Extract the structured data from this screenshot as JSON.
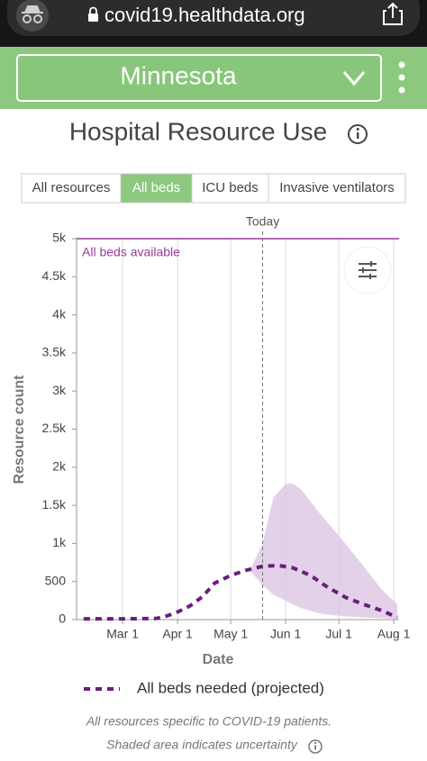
{
  "browser": {
    "url": "covid19.healthdata.org"
  },
  "header": {
    "state": "Minnesota"
  },
  "title": "Hospital Resource Use",
  "tabs": {
    "items": [
      "All resources",
      "All beds",
      "ICU beds",
      "Invasive ventilators"
    ],
    "selected": 1
  },
  "chart_data": {
    "type": "line",
    "x": [
      "Feb 8",
      "Mar 1",
      "Mar 20",
      "Mar 25",
      "Apr 1",
      "Apr 8",
      "Apr 15",
      "Apr 22",
      "May 1",
      "May 10",
      "May 19",
      "May 28",
      "Jun 5",
      "Jun 15",
      "Jun 25",
      "Jul 5",
      "Jul 15",
      "Jul 25",
      "Aug 3"
    ],
    "series": [
      {
        "name": "All beds needed (projected)",
        "color": "#6b1d7b",
        "values": [
          10,
          10,
          15,
          40,
          100,
          180,
          300,
          480,
          580,
          650,
          700,
          710,
          680,
          580,
          420,
          290,
          200,
          120,
          30
        ]
      }
    ],
    "band": {
      "x": [
        "May 12",
        "May 19",
        "May 25",
        "Jun 1",
        "Jun 5",
        "Jun 10",
        "Jun 20",
        "Jul 1",
        "Jul 15",
        "Jul 25",
        "Aug 3"
      ],
      "upper": [
        650,
        1000,
        1600,
        1780,
        1790,
        1700,
        1400,
        1100,
        700,
        400,
        200
      ],
      "lower": [
        640,
        450,
        330,
        250,
        200,
        150,
        80,
        50,
        30,
        20,
        10
      ],
      "color": "#dcc5e3"
    },
    "today": {
      "label": "Today",
      "x": "May 19"
    },
    "capacity": {
      "label": "All beds available",
      "value": 5000,
      "color": "#9b3a9b"
    },
    "xlabel": "Date",
    "ylabel": "Resource count",
    "xlim": [
      "Feb 4",
      "Aug 4"
    ],
    "xticks": [
      "Mar 1",
      "Apr 1",
      "May 1",
      "Jun 1",
      "Jul 1",
      "Aug 1"
    ],
    "ylim": [
      0,
      5000
    ],
    "yticks": [
      0,
      500,
      {
        "value": 1000,
        "label": "1k"
      },
      {
        "value": 1500,
        "label": "1.5k"
      },
      {
        "value": 2000,
        "label": "2k"
      },
      {
        "value": 2500,
        "label": "2.5k"
      },
      {
        "value": 3000,
        "label": "3k"
      },
      {
        "value": 3500,
        "label": "3.5k"
      },
      {
        "value": 4000,
        "label": "4k"
      },
      {
        "value": 4500,
        "label": "4.5k"
      },
      {
        "value": 5000,
        "label": "5k"
      }
    ],
    "grid": true
  },
  "notes": [
    "All resources specific to COVID-19 patients.",
    "Shaded area indicates uncertainty"
  ]
}
